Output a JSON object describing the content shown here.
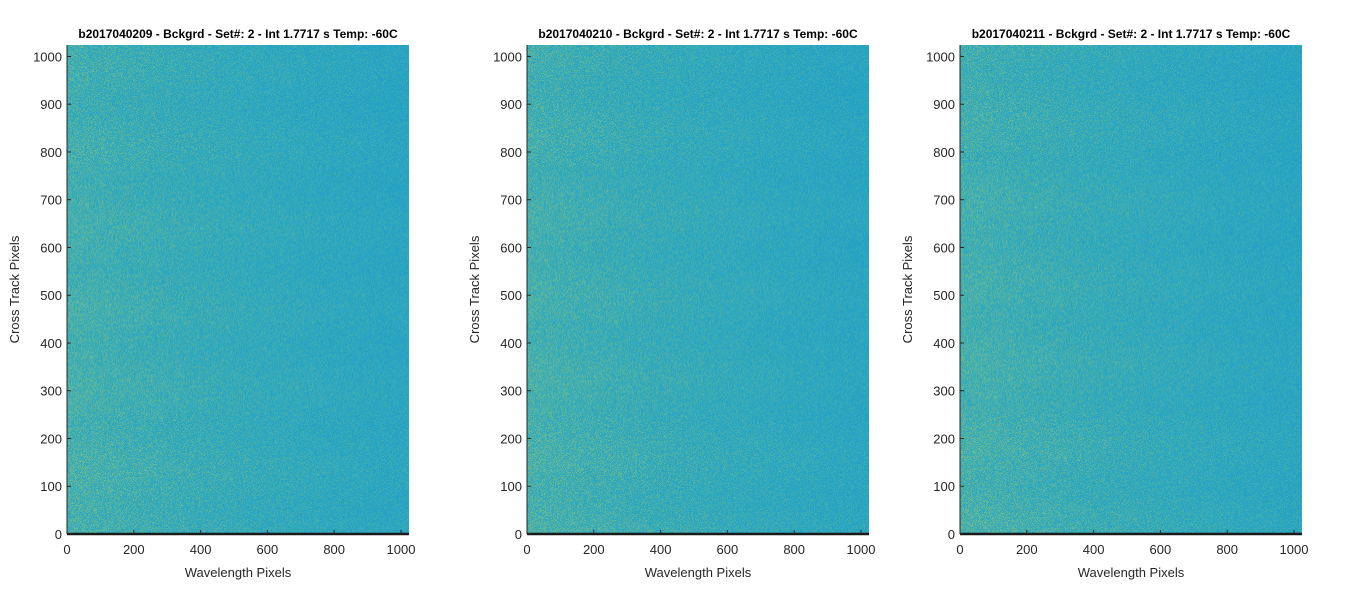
{
  "chart_data": [
    {
      "type": "heatmap",
      "title": "b2017040209 - Bckgrd - Set#: 2 - Int 1.7717 s Temp: -60C",
      "xlabel": "Wavelength Pixels",
      "ylabel": "Cross Track Pixels",
      "xlim": [
        0,
        1024
      ],
      "ylim": [
        0,
        1024
      ],
      "xticks": [
        0,
        200,
        400,
        600,
        800,
        1000
      ],
      "yticks": [
        0,
        100,
        200,
        300,
        400,
        500,
        600,
        700,
        800,
        900,
        1000
      ],
      "colormap": "parula",
      "colors": [
        "#2aa6c1",
        "#4fb2a6",
        "#7ebf85",
        "#1f9dc7"
      ],
      "grid": false
    },
    {
      "type": "heatmap",
      "title": "b2017040210 - Bckgrd - Set#: 2 - Int 1.7717 s Temp: -60C",
      "xlabel": "Wavelength Pixels",
      "ylabel": "Cross Track Pixels",
      "xlim": [
        0,
        1024
      ],
      "ylim": [
        0,
        1024
      ],
      "xticks": [
        0,
        200,
        400,
        600,
        800,
        1000
      ],
      "yticks": [
        0,
        100,
        200,
        300,
        400,
        500,
        600,
        700,
        800,
        900,
        1000
      ],
      "colormap": "parula",
      "colors": [
        "#2aa6c1",
        "#4fb2a6",
        "#7ebf85",
        "#1f9dc7"
      ],
      "grid": false
    },
    {
      "type": "heatmap",
      "title": "b2017040211 - Bckgrd - Set#: 2 - Int 1.7717 s Temp: -60C",
      "xlabel": "Wavelength Pixels",
      "ylabel": "Cross Track Pixels",
      "xlim": [
        0,
        1024
      ],
      "ylim": [
        0,
        1024
      ],
      "xticks": [
        0,
        200,
        400,
        600,
        800,
        1000
      ],
      "yticks": [
        0,
        100,
        200,
        300,
        400,
        500,
        600,
        700,
        800,
        900,
        1000
      ],
      "colormap": "parula",
      "colors": [
        "#2aa6c1",
        "#4fb2a6",
        "#7ebf85",
        "#1f9dc7"
      ],
      "grid": false
    }
  ]
}
